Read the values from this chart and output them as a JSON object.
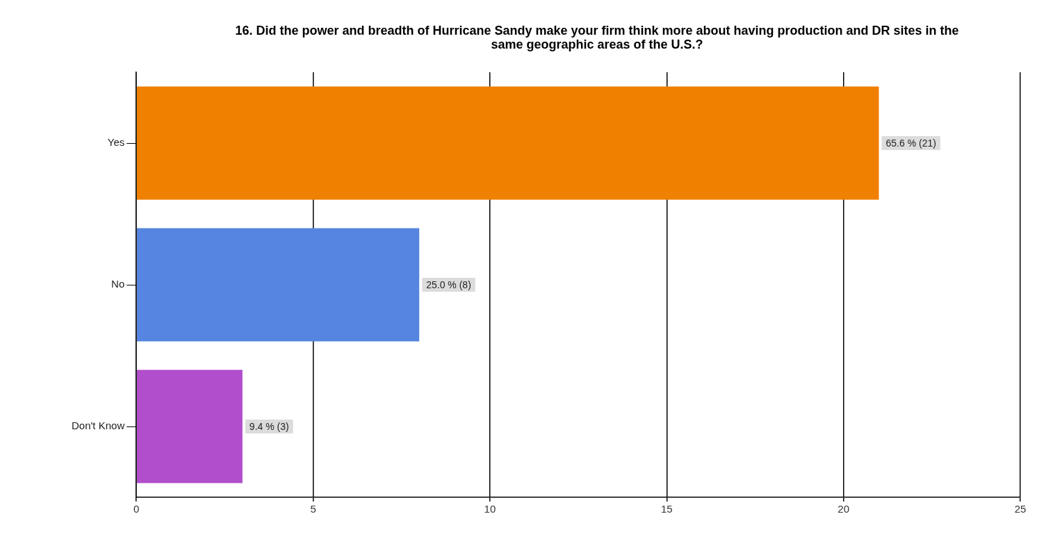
{
  "chart_data": {
    "type": "bar",
    "orientation": "horizontal",
    "title": "16. Did the power and breadth of Hurricane Sandy make your firm think more about having production and DR sites in the same geographic areas of the U.S.?",
    "categories": [
      "Yes",
      "No",
      "Don't Know"
    ],
    "values": [
      21,
      8,
      3
    ],
    "colors": [
      "#f08000",
      "#5585e0",
      "#b04ecc"
    ],
    "value_labels": [
      "65.6 % (21)",
      "25.0 % (8)",
      "9.4 % (3)"
    ],
    "xlim": [
      0,
      25
    ],
    "xticks": [
      0,
      5,
      10,
      15,
      20,
      25
    ],
    "grid": "x",
    "legend": false
  }
}
